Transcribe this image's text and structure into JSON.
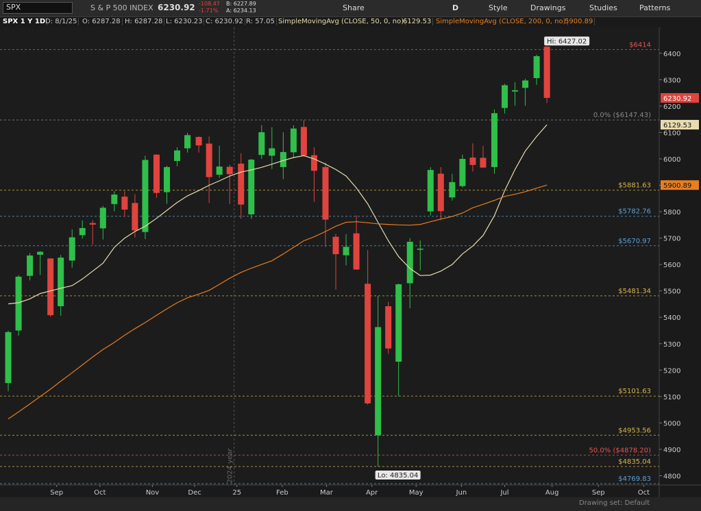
{
  "toolbar": {
    "symbol": "SPX",
    "description": "S & P 500 INDEX",
    "last": "6230.92",
    "change": "-108.47",
    "change_pct": "-1.71%",
    "bid": "B: 6227.89",
    "ask": "A: 6234.13",
    "share": "Share",
    "period": "D",
    "style": "Style",
    "drawings": "Drawings",
    "studies": "Studies",
    "patterns": "Patterns"
  },
  "info_bar": {
    "chart_name": "SPX 1 Y 1D",
    "date": "D: 8/1/25",
    "open": "O: 6287.28",
    "high": "H: 6287.28",
    "low": "L: 6230.23",
    "close": "C: 6230.92",
    "range": "R: 57.05"
  },
  "status_bar": {
    "drawing_set": "Drawing set: Default"
  },
  "chart_data": {
    "type": "candlestick",
    "x": [
      0.8,
      1.8,
      2.9,
      3.9,
      4.9,
      5.9,
      7.0,
      8.0,
      9.0,
      10.0,
      11.1,
      12.1,
      13.1,
      14.1,
      15.2,
      16.2,
      17.2,
      18.2,
      19.3,
      20.3,
      21.3,
      22.3,
      23.4,
      24.4,
      25.4,
      26.4,
      27.5,
      28.5,
      29.5,
      30.5,
      31.6,
      32.6,
      33.6,
      34.6,
      35.7,
      36.7,
      37.7,
      38.7,
      39.8,
      40.8,
      41.8,
      42.8,
      43.9,
      44.9,
      45.9,
      46.9,
      48.0,
      49.0,
      50.0,
      51.0,
      52.1,
      53.1
    ],
    "open": [
      5151,
      5350,
      5557,
      5637,
      5623,
      5442,
      5615,
      5711,
      5757,
      5737,
      5829,
      5857,
      5833,
      5723,
      6016,
      5874,
      5992,
      6040,
      6083,
      6058,
      5940,
      5970,
      5982,
      5790,
      6015,
      6012,
      5969,
      6025,
      6121,
      6014,
      5969,
      5705,
      5635,
      5718,
      5527,
      4953,
      5442,
      5232,
      5529,
      5656,
      5801,
      5944,
      5854,
      5897,
      6005,
      6004,
      5969,
      6193,
      6255,
      6269,
      6306,
      6425
    ],
    "high": [
      5350,
      5560,
      5643,
      5651,
      5623,
      5636,
      5733,
      5767,
      5767,
      5822,
      5878,
      5878,
      5866,
      6012,
      6018,
      5974,
      6044,
      6099,
      6085,
      6085,
      6050,
      5978,
      6021,
      6000,
      6128,
      6120,
      6101,
      6128,
      6147,
      6044,
      5986,
      5716,
      5715,
      5786,
      5655,
      5481,
      5459,
      5528,
      5700,
      5691,
      5969,
      5969,
      5943,
      6016,
      6059,
      6050,
      6187,
      6284,
      6290,
      6303,
      6395,
      6427
    ],
    "low": [
      5120,
      5330,
      5540,
      5560,
      5402,
      5406,
      5588,
      5698,
      5675,
      5695,
      5801,
      5782,
      5702,
      5696,
      5853,
      5830,
      5972,
      6024,
      6024,
      5833,
      5929,
      5829,
      5773,
      5773,
      6000,
      5962,
      5923,
      6003,
      6009,
      5837,
      5666,
      5505,
      5597,
      5580,
      5069,
      4835,
      5262,
      5101,
      5434,
      5578,
      5786,
      5768,
      5842,
      5891,
      5952,
      5968,
      5943,
      6172,
      6201,
      6201,
      6281,
      6212
    ],
    "close": [
      5344,
      5554,
      5634,
      5648,
      5408,
      5626,
      5703,
      5738,
      5751,
      5815,
      5865,
      5808,
      5729,
      5996,
      5871,
      5969,
      6032,
      6090,
      6051,
      5931,
      5971,
      5942,
      5827,
      5997,
      6101,
      6040,
      6026,
      6115,
      6013,
      5955,
      5770,
      5639,
      5667,
      5581,
      5074,
      5363,
      5282,
      5525,
      5686,
      5660,
      5958,
      5802,
      5912,
      6000,
      5977,
      5967,
      6173,
      6279,
      6260,
      6297,
      6389,
      6231
    ],
    "up_color": "#2fbf4a",
    "down_color": "#e0443e",
    "series": [
      {
        "name": "SimpleMovingAvg (CLOSE, 50, 0, no)",
        "color": "#e8dcae",
        "values": [
          5451,
          5455,
          5470,
          5490,
          5500,
          5510,
          5520,
          5545,
          5575,
          5605,
          5665,
          5700,
          5725,
          5745,
          5775,
          5805,
          5835,
          5860,
          5880,
          5900,
          5917,
          5935,
          5950,
          5958,
          5968,
          5980,
          5994,
          6005,
          6012,
          6000,
          5980,
          5960,
          5935,
          5890,
          5830,
          5760,
          5690,
          5630,
          5585,
          5558,
          5560,
          5575,
          5600,
          5640,
          5670,
          5710,
          5785,
          5880,
          5960,
          6030,
          6085,
          6129.53
        ]
      },
      {
        "name": "SimpleMovingAvg (CLOSE, 200, 0, no)",
        "color": "#e67e22",
        "values": [
          5015,
          5042,
          5072,
          5100,
          5128,
          5158,
          5190,
          5220,
          5250,
          5278,
          5305,
          5332,
          5357,
          5380,
          5408,
          5432,
          5455,
          5474,
          5488,
          5502,
          5525,
          5548,
          5570,
          5586,
          5600,
          5614,
          5640,
          5665,
          5690,
          5705,
          5725,
          5745,
          5760,
          5762,
          5758,
          5754,
          5752,
          5750,
          5749,
          5752,
          5762,
          5772,
          5782,
          5795,
          5815,
          5828,
          5843,
          5858,
          5866,
          5876,
          5889,
          5900.89
        ]
      }
    ],
    "series_last": [
      6129.53,
      5900.89
    ],
    "last_price": 6230.92,
    "last_color": "#e0443e",
    "levels": [
      {
        "value": 6414,
        "label": "$6414",
        "color": "#e05555"
      },
      {
        "value": 6147.43,
        "label": "0.0% ($6147.43)",
        "color": "#888888"
      },
      {
        "value": 5881.63,
        "label": "$5881.63",
        "color": "#d9b44a"
      },
      {
        "value": 5782.76,
        "label": "$5782.76",
        "color": "#5aa0d8"
      },
      {
        "value": 5670.97,
        "label": "$5670.97",
        "color": "#5aa0d8"
      },
      {
        "value": 5481.34,
        "label": "$5481.34",
        "color": "#d9b44a"
      },
      {
        "value": 5101.63,
        "label": "$5101.63",
        "color": "#d9b44a"
      },
      {
        "value": 4953.56,
        "label": "$4953.56",
        "color": "#d9b44a"
      },
      {
        "value": 4878.2,
        "label": "50.0% ($4878.20)",
        "color": "#e05555"
      },
      {
        "value": 4835.04,
        "label": "$4835.04",
        "color": "#d9b44a"
      },
      {
        "value": 4769.83,
        "label": "$4769.83",
        "color": "#5aa0d8"
      }
    ],
    "hi": {
      "label": "Hi: 6427.02",
      "value": 6427.02
    },
    "lo": {
      "label": "Lo: 4835.04",
      "value": 4835.04
    },
    "year_label": "2024 year",
    "xlim": [
      0,
      64
    ],
    "xticks": [
      {
        "value": 5.5,
        "label": "Sep"
      },
      {
        "value": 9.7,
        "label": "Oct"
      },
      {
        "value": 14.8,
        "label": "Nov"
      },
      {
        "value": 18.9,
        "label": "Dec"
      },
      {
        "value": 23.0,
        "label": "25"
      },
      {
        "value": 27.4,
        "label": "Feb"
      },
      {
        "value": 31.7,
        "label": "Mar"
      },
      {
        "value": 36.1,
        "label": "Apr"
      },
      {
        "value": 40.4,
        "label": "May"
      },
      {
        "value": 44.8,
        "label": "Jun"
      },
      {
        "value": 49.0,
        "label": "Jul"
      },
      {
        "value": 53.6,
        "label": "Aug"
      },
      {
        "value": 58.1,
        "label": "Sep"
      },
      {
        "value": 62.5,
        "label": "Oct"
      }
    ],
    "ylim": [
      4765,
      6498
    ],
    "yticks": [
      4800,
      4900,
      5000,
      5100,
      5200,
      5300,
      5400,
      5500,
      5600,
      5700,
      5800,
      5900,
      6000,
      6100,
      6200,
      6300,
      6400
    ]
  }
}
